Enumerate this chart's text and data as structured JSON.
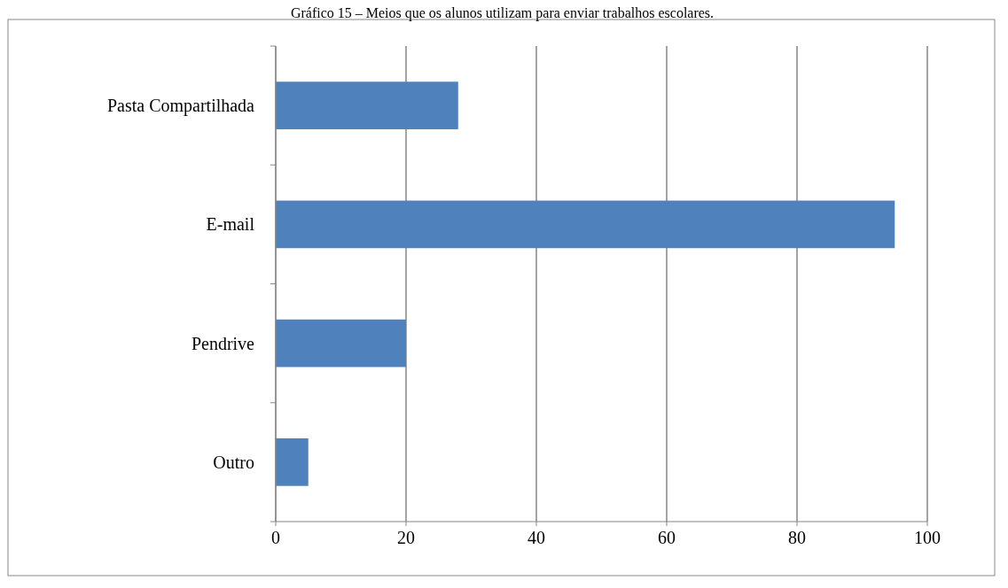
{
  "chart_data": {
    "type": "bar",
    "orientation": "horizontal",
    "title": "Gráfico 15 – Meios que os alunos utilizam para enviar trabalhos escolares.",
    "categories": [
      "Pasta Compartilhada",
      "E-mail",
      "Pendrive",
      "Outro"
    ],
    "values": [
      28,
      95,
      20,
      5
    ],
    "color": "#4f81bd",
    "xlim": [
      0,
      100
    ],
    "xticks": [
      0,
      20,
      40,
      60,
      80,
      100
    ],
    "grid": "x"
  }
}
